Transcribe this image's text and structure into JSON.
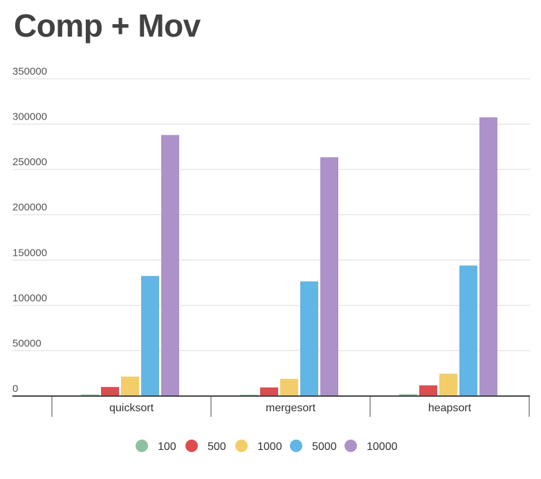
{
  "chart_data": {
    "type": "bar",
    "title": "Comp + Mov",
    "xlabel": "",
    "ylabel": "",
    "categories": [
      "quicksort",
      "mergesort",
      "heapsort"
    ],
    "series": [
      {
        "name": "100",
        "color": "#8fc1a0",
        "values": [
          1700,
          1500,
          2000
        ]
      },
      {
        "name": "500",
        "color": "#dc4d4f",
        "values": [
          10000,
          9500,
          11800
        ]
      },
      {
        "name": "1000",
        "color": "#f2cd6a",
        "values": [
          21500,
          19000,
          24700
        ]
      },
      {
        "name": "5000",
        "color": "#62b6e5",
        "values": [
          132500,
          126500,
          144000
        ]
      },
      {
        "name": "10000",
        "color": "#ad92c9",
        "values": [
          288000,
          263500,
          307500
        ]
      }
    ],
    "ylim": [
      0,
      350000
    ],
    "yticks": [
      "0",
      "50000",
      "100000",
      "150000",
      "200000",
      "250000",
      "300000",
      "350000"
    ],
    "grid": true,
    "legend_position": "bottom"
  }
}
